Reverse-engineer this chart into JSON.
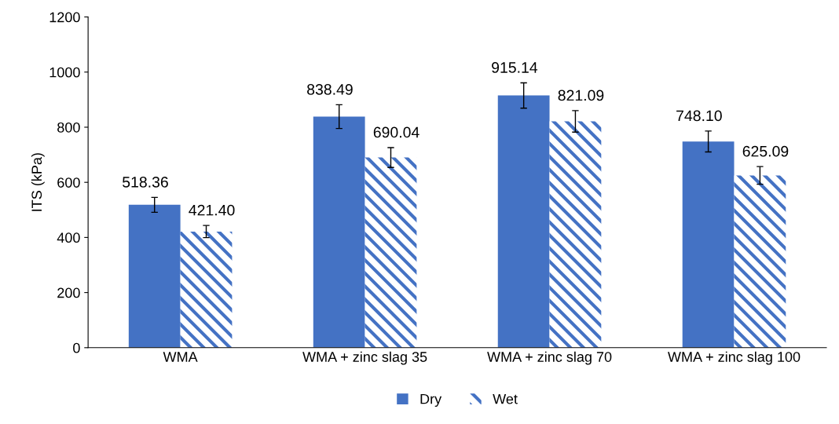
{
  "chart_data": {
    "type": "bar",
    "ylabel": "ITS (kPa)",
    "categories": [
      "WMA",
      "WMA + zinc slag 35",
      "WMA + zinc slag 70",
      "WMA + zinc slag 100"
    ],
    "series": [
      {
        "name": "Dry",
        "color": "#4472c4",
        "values": [
          518.36,
          838.49,
          915.14,
          748.1
        ],
        "errors": [
          27,
          43,
          46,
          38
        ],
        "value_labels": [
          "518.36",
          "838.49",
          "915.14",
          "748.10"
        ]
      },
      {
        "name": "Wet",
        "color": "#4472c4",
        "values": [
          421.4,
          690.04,
          821.09,
          625.09
        ],
        "errors": [
          22,
          36,
          39,
          32
        ],
        "value_labels": [
          "421.40",
          "690.04",
          "821.09",
          "625.09"
        ]
      }
    ],
    "ylim": [
      0,
      1200
    ],
    "yticks": [
      0,
      200,
      400,
      600,
      800,
      1000,
      1200
    ],
    "grid": false,
    "legend": "bottom"
  }
}
